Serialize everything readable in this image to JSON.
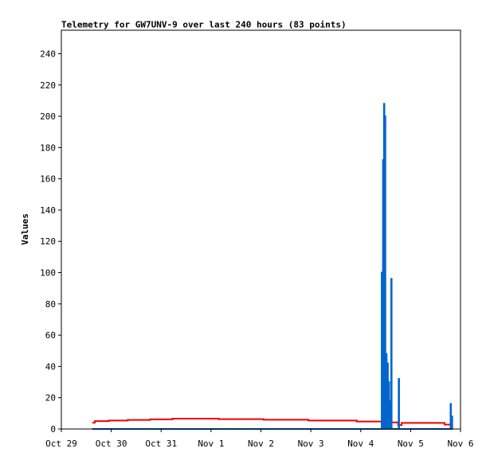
{
  "chart_data": {
    "type": "line",
    "title": "Telemetry for GW7UNV-9 over last 240 hours (83 points)",
    "xlabel": "",
    "ylabel": "Values",
    "ylim": [
      0,
      255
    ],
    "xlim": [
      0,
      8
    ],
    "yticks": [
      0,
      20,
      40,
      60,
      80,
      100,
      120,
      140,
      160,
      180,
      200,
      220,
      240
    ],
    "xticks": [
      {
        "value": 0,
        "label": "Oct 29"
      },
      {
        "value": 1,
        "label": "Oct 30"
      },
      {
        "value": 2,
        "label": "Oct 31"
      },
      {
        "value": 3,
        "label": "Nov 1"
      },
      {
        "value": 4,
        "label": "Nov 2"
      },
      {
        "value": 5,
        "label": "Nov 3"
      },
      {
        "value": 6,
        "label": "Nov 4"
      },
      {
        "value": 7,
        "label": "Nov 5"
      },
      {
        "value": 8,
        "label": "Nov 6"
      }
    ],
    "grid": false,
    "legend": "none",
    "series": [
      {
        "color": "#ee0000",
        "points": [
          [
            0.62,
            4
          ],
          [
            0.67,
            4
          ],
          [
            0.67,
            5
          ],
          [
            0.95,
            5
          ],
          [
            0.95,
            5.4
          ],
          [
            1.33,
            5.4
          ],
          [
            1.33,
            5.8
          ],
          [
            1.78,
            5.8
          ],
          [
            1.78,
            6.2
          ],
          [
            2.23,
            6.2
          ],
          [
            2.23,
            6.6
          ],
          [
            3.15,
            6.6
          ],
          [
            3.15,
            6.3
          ],
          [
            4.05,
            6.3
          ],
          [
            4.05,
            5.9
          ],
          [
            4.95,
            5.9
          ],
          [
            4.95,
            5.4
          ],
          [
            5.92,
            5.4
          ],
          [
            5.92,
            4.8
          ],
          [
            6.57,
            4.8
          ],
          [
            6.57,
            4.2
          ],
          [
            6.75,
            4.2
          ],
          [
            6.75,
            2.5
          ],
          [
            6.82,
            2.5
          ],
          [
            6.82,
            3.9
          ],
          [
            7.68,
            3.9
          ],
          [
            7.68,
            2.8
          ],
          [
            7.82,
            2.8
          ]
        ]
      },
      {
        "color": "#0066cc",
        "points": [
          [
            0.62,
            0
          ],
          [
            6.42,
            0
          ],
          [
            6.42,
            100
          ],
          [
            6.43,
            100
          ],
          [
            6.43,
            0
          ],
          [
            6.445,
            0
          ],
          [
            6.445,
            172
          ],
          [
            6.455,
            172
          ],
          [
            6.455,
            0
          ],
          [
            6.465,
            0
          ],
          [
            6.465,
            208
          ],
          [
            6.475,
            208
          ],
          [
            6.475,
            0
          ],
          [
            6.485,
            0
          ],
          [
            6.485,
            200
          ],
          [
            6.495,
            200
          ],
          [
            6.495,
            0
          ],
          [
            6.51,
            0
          ],
          [
            6.51,
            48
          ],
          [
            6.52,
            48
          ],
          [
            6.52,
            0
          ],
          [
            6.535,
            0
          ],
          [
            6.535,
            42
          ],
          [
            6.545,
            42
          ],
          [
            6.545,
            0
          ],
          [
            6.56,
            0
          ],
          [
            6.56,
            30
          ],
          [
            6.57,
            30
          ],
          [
            6.57,
            0
          ],
          [
            6.585,
            0
          ],
          [
            6.585,
            18
          ],
          [
            6.595,
            18
          ],
          [
            6.595,
            0
          ],
          [
            6.61,
            0
          ],
          [
            6.61,
            96
          ],
          [
            6.62,
            96
          ],
          [
            6.62,
            0
          ],
          [
            6.76,
            0
          ],
          [
            6.76,
            32
          ],
          [
            6.77,
            32
          ],
          [
            6.77,
            0
          ],
          [
            7.8,
            0
          ],
          [
            7.8,
            16
          ],
          [
            7.81,
            16
          ],
          [
            7.81,
            0
          ],
          [
            7.825,
            0
          ],
          [
            7.825,
            8
          ],
          [
            7.835,
            8
          ],
          [
            7.835,
            0
          ]
        ]
      }
    ]
  }
}
